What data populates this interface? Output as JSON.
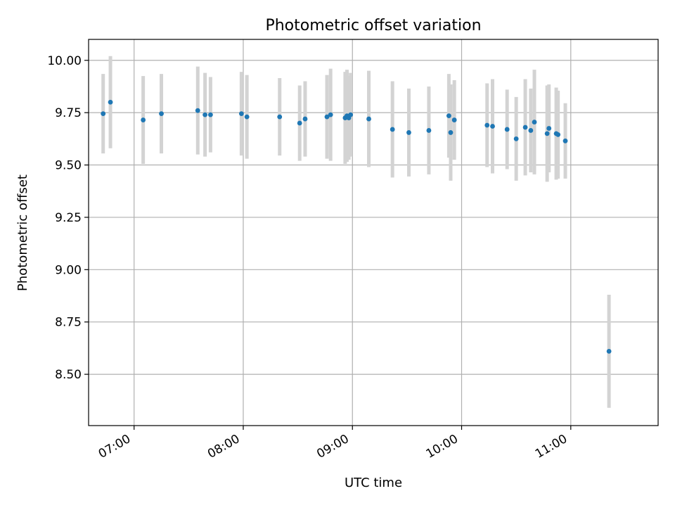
{
  "chart_data": {
    "type": "scatter",
    "title": "Photometric offset variation",
    "xlabel": "UTC time",
    "ylabel": "Photometric offset",
    "x_axis_kind": "time",
    "xlim": [
      "06:35",
      "11:48"
    ],
    "ylim": [
      8.255,
      10.1
    ],
    "x_ticks": [
      "07:00",
      "08:00",
      "09:00",
      "10:00",
      "11:00"
    ],
    "y_ticks": [
      "8.50",
      "8.75",
      "9.00",
      "9.25",
      "9.50",
      "9.75",
      "10.00"
    ],
    "grid": true,
    "legend": "none",
    "colors": {
      "points": "#1f77b4",
      "errorbars": "#d3d3d3",
      "grid": "#b0b0b0"
    },
    "series": [
      {
        "points": [
          {
            "x": "06:43",
            "y": 9.745,
            "err": 0.19
          },
          {
            "x": "06:47",
            "y": 9.8,
            "err": 0.22
          },
          {
            "x": "07:05",
            "y": 9.715,
            "err": 0.21
          },
          {
            "x": "07:15",
            "y": 9.745,
            "err": 0.19
          },
          {
            "x": "07:35",
            "y": 9.76,
            "err": 0.21
          },
          {
            "x": "07:39",
            "y": 9.74,
            "err": 0.2
          },
          {
            "x": "07:42",
            "y": 9.74,
            "err": 0.18
          },
          {
            "x": "07:59",
            "y": 9.745,
            "err": 0.2
          },
          {
            "x": "08:02",
            "y": 9.73,
            "err": 0.2
          },
          {
            "x": "08:20",
            "y": 9.73,
            "err": 0.185
          },
          {
            "x": "08:31",
            "y": 9.7,
            "err": 0.18
          },
          {
            "x": "08:34",
            "y": 9.72,
            "err": 0.18
          },
          {
            "x": "08:46",
            "y": 9.73,
            "err": 0.2
          },
          {
            "x": "08:48",
            "y": 9.74,
            "err": 0.22
          },
          {
            "x": "08:56",
            "y": 9.725,
            "err": 0.22
          },
          {
            "x": "08:57",
            "y": 9.735,
            "err": 0.22
          },
          {
            "x": "08:58",
            "y": 9.725,
            "err": 0.2
          },
          {
            "x": "08:59",
            "y": 9.74,
            "err": 0.2
          },
          {
            "x": "09:09",
            "y": 9.72,
            "err": 0.23
          },
          {
            "x": "09:22",
            "y": 9.67,
            "err": 0.23
          },
          {
            "x": "09:31",
            "y": 9.655,
            "err": 0.21
          },
          {
            "x": "09:42",
            "y": 9.665,
            "err": 0.21
          },
          {
            "x": "09:53",
            "y": 9.735,
            "err": 0.2
          },
          {
            "x": "09:54",
            "y": 9.655,
            "err": 0.23
          },
          {
            "x": "09:56",
            "y": 9.715,
            "err": 0.19
          },
          {
            "x": "10:14",
            "y": 9.69,
            "err": 0.2
          },
          {
            "x": "10:17",
            "y": 9.685,
            "err": 0.225
          },
          {
            "x": "10:25",
            "y": 9.67,
            "err": 0.19
          },
          {
            "x": "10:30",
            "y": 9.625,
            "err": 0.2
          },
          {
            "x": "10:35",
            "y": 9.68,
            "err": 0.23
          },
          {
            "x": "10:38",
            "y": 9.665,
            "err": 0.2
          },
          {
            "x": "10:40",
            "y": 9.705,
            "err": 0.25
          },
          {
            "x": "10:47",
            "y": 9.65,
            "err": 0.23
          },
          {
            "x": "10:48",
            "y": 9.675,
            "err": 0.21
          },
          {
            "x": "10:52",
            "y": 9.65,
            "err": 0.22
          },
          {
            "x": "10:53",
            "y": 9.645,
            "err": 0.21
          },
          {
            "x": "10:57",
            "y": 9.615,
            "err": 0.18
          },
          {
            "x": "11:21",
            "y": 8.61,
            "err": 0.27
          }
        ]
      }
    ]
  }
}
